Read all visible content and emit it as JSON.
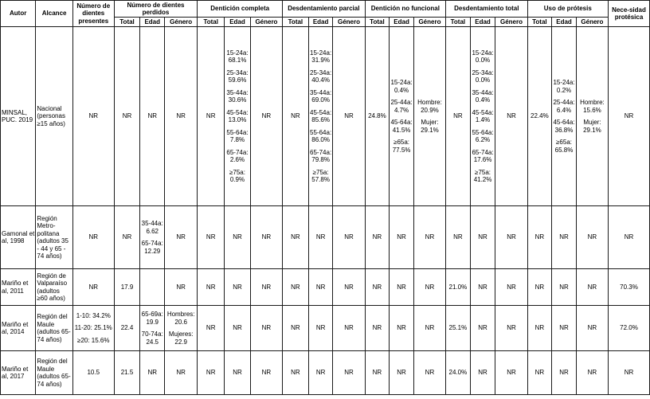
{
  "headers": {
    "autor": "Autor",
    "alcance": "Alcance",
    "num_presentes": "Número de dientes presentes",
    "num_perdidos": "Número de dientes perdidos",
    "denticion_completa": "Dentición completa",
    "desdentamiento_parcial": "Desdentamiento parcial",
    "denticion_no_funcional": "Dentición no funcional",
    "desdentamiento_total": "Desdentamiento total",
    "uso_protesis": "Uso de prótesis",
    "necesidad_protesica": "Nece-sidad protésica",
    "total": "Total",
    "edad": "Edad",
    "genero": "Género"
  },
  "rows": [
    {
      "autor": "MINSAL, PUC. 2019",
      "alcance": "Nacional (personas ≥15 años)",
      "presentes": "NR",
      "perdidos_total": "NR",
      "perdidos_edad": [
        "NR"
      ],
      "perdidos_genero": [
        "NR"
      ],
      "completa_total": "NR",
      "completa_edad": [
        "15-24a: 68.1%",
        "25-34a: 59.6%",
        "35-44a: 30.6%",
        "45-54a: 13.0%",
        "55-64a: 7.8%",
        "65-74a: 2.6%",
        "≥75a: 0.9%"
      ],
      "completa_genero": "NR",
      "parcial_total": "NR",
      "parcial_edad": [
        "15-24a: 31.9%",
        "25-34a: 40.4%",
        "35-44a: 69.0%",
        "45-54a: 85.6%",
        "55-64a: 86.0%",
        "65-74a: 79.8%",
        "≥75a: 57.8%"
      ],
      "parcial_genero": "NR",
      "nofunc_total": "24.8%",
      "nofunc_edad": [
        "15-24a: 0.4%",
        "25-44a: 4.7%",
        "45-64a: 41.5%",
        "≥65a: 77.5%"
      ],
      "nofunc_genero": [
        "Hombre: 20.9%",
        "Mujer: 29.1%"
      ],
      "total_total": "NR",
      "total_edad": [
        "15-24a: 0.0%",
        "25-34a: 0.0%",
        "35-44a: 0.4%",
        "45-54a: 1.4%",
        "55-64a: 6.2%",
        "65-74a: 17.6%",
        "≥75a: 41.2%"
      ],
      "total_genero": "NR",
      "uso_total": "22.4%",
      "uso_edad": [
        "15-24a: 0.2%",
        "25-44a: 6.4%",
        "45-64a: 36.8%",
        "≥65a: 65.8%"
      ],
      "uso_genero": [
        "Hombre: 15.6%",
        "Mujer: 29.1%"
      ],
      "necesidad": "NR"
    },
    {
      "autor": "Gamonal et al, 1998",
      "alcance": "Región Metro-politana (adultos 35 - 44 y 65 - 74 años)",
      "presentes": "NR",
      "perdidos_total": "NR",
      "perdidos_edad": [
        "35-44a: 6.62",
        "65-74a: 12.29"
      ],
      "perdidos_genero": [
        "NR"
      ],
      "completa_total": "NR",
      "completa_edad": [
        "NR"
      ],
      "completa_genero": "NR",
      "parcial_total": "NR",
      "parcial_edad": [
        "NR"
      ],
      "parcial_genero": "NR",
      "nofunc_total": "NR",
      "nofunc_edad": [
        "NR"
      ],
      "nofunc_genero": [
        "NR"
      ],
      "total_total": "NR",
      "total_edad": [
        "NR"
      ],
      "total_genero": "NR",
      "uso_total": "NR",
      "uso_edad": [
        "NR"
      ],
      "uso_genero": [
        "NR"
      ],
      "necesidad": "NR"
    },
    {
      "autor": "Mariño et al, 2011",
      "alcance": "Región de Valparaíso (adultos ≥60 años)",
      "presentes": "NR",
      "perdidos_total": "17.9",
      "perdidos_edad": [
        ""
      ],
      "perdidos_genero": [
        "NR"
      ],
      "completa_total": "NR",
      "completa_edad": [
        "NR"
      ],
      "completa_genero": "NR",
      "parcial_total": "NR",
      "parcial_edad": [
        "NR"
      ],
      "parcial_genero": "NR",
      "nofunc_total": "NR",
      "nofunc_edad": [
        "NR"
      ],
      "nofunc_genero": [
        "NR"
      ],
      "total_total": "21.0%",
      "total_edad": [
        "NR"
      ],
      "total_genero": "NR",
      "uso_total": "NR",
      "uso_edad": [
        "NR"
      ],
      "uso_genero": [
        "NR"
      ],
      "necesidad": "70.3%"
    },
    {
      "autor": "Mariño et al, 2014",
      "alcance": "Región del Maule (adultos 65-74 años)",
      "presentes_list": [
        "1-10: 34.2%",
        "11-20: 25.1%",
        "≥20: 15.6%"
      ],
      "perdidos_total": "22.4",
      "perdidos_edad": [
        "65-69a: 19.9",
        "70-74a: 24.5"
      ],
      "perdidos_genero": [
        "Hombres: 20.6",
        "Mujeres: 22.9"
      ],
      "completa_total": "NR",
      "completa_edad": [
        "NR"
      ],
      "completa_genero": "NR",
      "parcial_total": "NR",
      "parcial_edad": [
        "NR"
      ],
      "parcial_genero": "NR",
      "nofunc_total": "NR",
      "nofunc_edad": [
        "NR"
      ],
      "nofunc_genero": [
        "NR"
      ],
      "total_total": "25.1%",
      "total_edad": [
        "NR"
      ],
      "total_genero": "NR",
      "uso_total": "NR",
      "uso_edad": [
        "NR"
      ],
      "uso_genero": [
        "NR"
      ],
      "necesidad": "72.0%"
    },
    {
      "autor": "Mariño et al, 2017",
      "alcance": "Región del Maule (adultos 65-74 años)",
      "presentes": "10.5",
      "perdidos_total": "21.5",
      "perdidos_edad": [
        "NR"
      ],
      "perdidos_genero": [
        "NR"
      ],
      "completa_total": "NR",
      "completa_edad": [
        "NR"
      ],
      "completa_genero": "NR",
      "parcial_total": "NR",
      "parcial_edad": [
        "NR"
      ],
      "parcial_genero": "NR",
      "nofunc_total": "NR",
      "nofunc_edad": [
        "NR"
      ],
      "nofunc_genero": [
        "NR"
      ],
      "total_total": "24.0%",
      "total_edad": [
        "NR"
      ],
      "total_genero": "NR",
      "uso_total": "NR",
      "uso_edad": [
        "NR"
      ],
      "uso_genero": [
        "NR"
      ],
      "necesidad": "NR"
    }
  ]
}
